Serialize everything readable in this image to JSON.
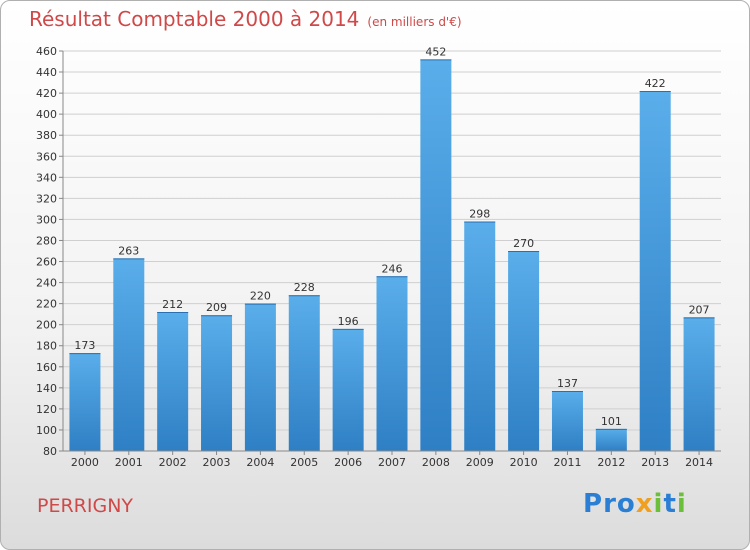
{
  "title": "Résultat Comptable 2000 à 2014",
  "subtitle": "(en milliers d'€)",
  "commune": "PERRIGNY",
  "logo": {
    "letters": [
      "P",
      "r",
      "o",
      "x",
      "i",
      "t",
      "i"
    ],
    "colors": [
      "#2a7fd4",
      "#2a7fd4",
      "#2a7fd4",
      "#f0a020",
      "#6cbf3a",
      "#2a7fd4",
      "#6cbf3a"
    ]
  },
  "colors": {
    "bar_top": "#5aaeea",
    "bar_bottom": "#2e7fc4",
    "grid": "#cfcfcf",
    "text": "#333333"
  },
  "chart_data": {
    "type": "bar",
    "title": "Résultat Comptable 2000 à 2014",
    "subtitle": "(en milliers d'€)",
    "xlabel": "",
    "ylabel": "",
    "categories": [
      "2000",
      "2001",
      "2002",
      "2003",
      "2004",
      "2005",
      "2006",
      "2007",
      "2008",
      "2009",
      "2010",
      "2011",
      "2012",
      "2013",
      "2014"
    ],
    "values": [
      173,
      263,
      212,
      209,
      220,
      228,
      196,
      246,
      452,
      298,
      270,
      137,
      101,
      422,
      207
    ],
    "ylim": [
      80,
      460
    ],
    "yticks": [
      80,
      100,
      120,
      140,
      160,
      180,
      200,
      220,
      240,
      260,
      280,
      300,
      320,
      340,
      360,
      380,
      400,
      420,
      440,
      460
    ],
    "grid": true,
    "legend": "none"
  }
}
